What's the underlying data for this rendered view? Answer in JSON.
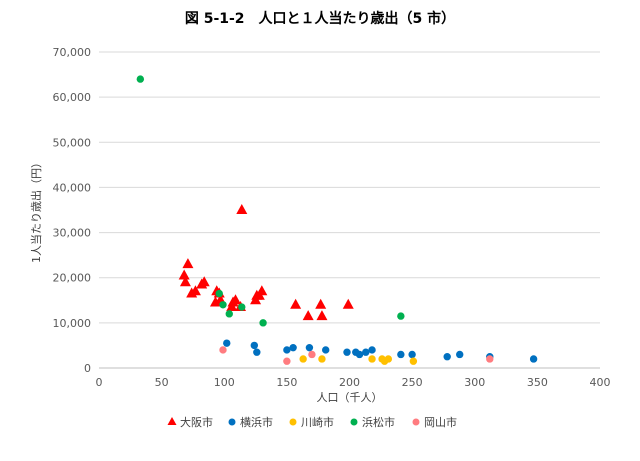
{
  "title": "図 5-1-2　人口と１人当たり歳出（5 市）",
  "chart_data": {
    "type": "scatter",
    "title": "図 5-1-2　人口と１人当たり歳出（5 市）",
    "xlabel": "人口（千人）",
    "ylabel": "1人当たり歳出（円）",
    "xlim": [
      0,
      400
    ],
    "ylim": [
      0,
      70000
    ],
    "x_ticks": [
      "0",
      "50",
      "100",
      "150",
      "200",
      "250",
      "300",
      "350",
      "400"
    ],
    "y_ticks": [
      "0",
      "10,000",
      "20,000",
      "30,000",
      "40,000",
      "50,000",
      "60,000",
      "70,000"
    ],
    "grid": "horizontal",
    "legend_position": "bottom",
    "series": [
      {
        "name": "大阪市",
        "marker": "triangle",
        "color": "#ff0000",
        "points": [
          [
            68,
            20500
          ],
          [
            69,
            19000
          ],
          [
            71,
            23000
          ],
          [
            74,
            16500
          ],
          [
            77,
            17000
          ],
          [
            82,
            18500
          ],
          [
            84,
            19000
          ],
          [
            93,
            14500
          ],
          [
            94,
            17000
          ],
          [
            96,
            16500
          ],
          [
            97,
            15000
          ],
          [
            106,
            13500
          ],
          [
            107,
            14500
          ],
          [
            109,
            15000
          ],
          [
            114,
            35000
          ],
          [
            113,
            13500
          ],
          [
            125,
            15000
          ],
          [
            126,
            16000
          ],
          [
            128,
            16000
          ],
          [
            130,
            17000
          ],
          [
            157,
            14000
          ],
          [
            167,
            11500
          ],
          [
            177,
            14000
          ],
          [
            178,
            11500
          ],
          [
            199,
            14000
          ]
        ]
      },
      {
        "name": "横浜市",
        "marker": "circle",
        "color": "#0070c0",
        "points": [
          [
            102,
            5500
          ],
          [
            124,
            5000
          ],
          [
            126,
            3500
          ],
          [
            150,
            4000
          ],
          [
            155,
            4500
          ],
          [
            168,
            4500
          ],
          [
            181,
            4000
          ],
          [
            198,
            3500
          ],
          [
            205,
            3500
          ],
          [
            208,
            3000
          ],
          [
            213,
            3500
          ],
          [
            218,
            4000
          ],
          [
            241,
            3000
          ],
          [
            250,
            3000
          ],
          [
            278,
            2500
          ],
          [
            288,
            3000
          ],
          [
            312,
            2500
          ],
          [
            347,
            2000
          ]
        ]
      },
      {
        "name": "川崎市",
        "marker": "circle",
        "color": "#ffc000",
        "points": [
          [
            163,
            2000
          ],
          [
            178,
            2000
          ],
          [
            218,
            2000
          ],
          [
            226,
            2000
          ],
          [
            228,
            1500
          ],
          [
            231,
            2000
          ],
          [
            251,
            1500
          ]
        ]
      },
      {
        "name": "浜松市",
        "marker": "circle",
        "color": "#00b050",
        "points": [
          [
            33,
            64000
          ],
          [
            96,
            16500
          ],
          [
            99,
            14000
          ],
          [
            104,
            12000
          ],
          [
            114,
            13500
          ],
          [
            131,
            10000
          ],
          [
            241,
            11500
          ]
        ]
      },
      {
        "name": "岡山市",
        "marker": "circle",
        "color": "#ff7c80",
        "points": [
          [
            99,
            4000
          ],
          [
            150,
            1500
          ],
          [
            170,
            3000
          ],
          [
            312,
            2000
          ]
        ]
      }
    ]
  }
}
